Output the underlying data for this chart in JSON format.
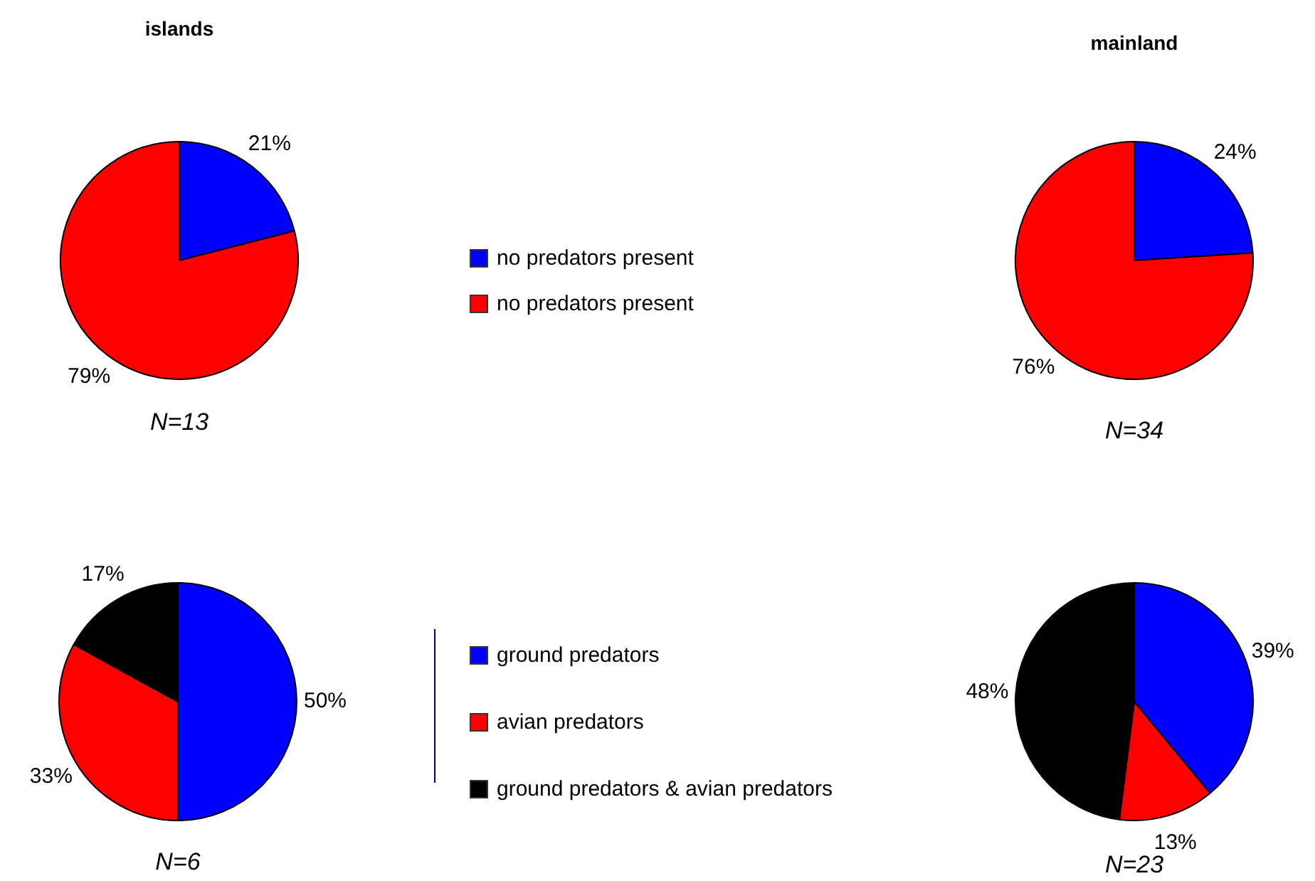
{
  "chart_data": [
    {
      "type": "pie",
      "title": "islands",
      "categories": [
        "no predators present",
        "no predators present"
      ],
      "values": [
        21,
        79
      ],
      "colors": [
        "#0000ff",
        "#ff0000"
      ],
      "value_labels": [
        "21%",
        "79%"
      ],
      "annotations": [
        "N=13"
      ],
      "legend": "right"
    },
    {
      "type": "pie",
      "title": "mainland",
      "categories": [
        null,
        null
      ],
      "values": [
        24,
        76
      ],
      "colors": [
        "#0000ff",
        "#ff0000"
      ],
      "value_labels": [
        "24%",
        "76%"
      ],
      "annotations": [
        "N=34"
      ]
    },
    {
      "type": "pie",
      "categories": [
        "ground predators",
        "avian predators",
        "ground predators & avian predators"
      ],
      "values": [
        50,
        33,
        17
      ],
      "colors": [
        "#0000ff",
        "#ff0000",
        "#000000"
      ],
      "value_labels": [
        "50%",
        "33%",
        "17%"
      ],
      "annotations": [
        "N=6"
      ],
      "legend": "right"
    },
    {
      "type": "pie",
      "categories": [
        null,
        null,
        null
      ],
      "values": [
        39,
        13,
        48
      ],
      "colors": [
        "#0000ff",
        "#ff0000",
        "#000000"
      ],
      "value_labels": [
        "39%",
        "13%",
        "48%"
      ],
      "annotations": [
        "N=23"
      ]
    }
  ]
}
